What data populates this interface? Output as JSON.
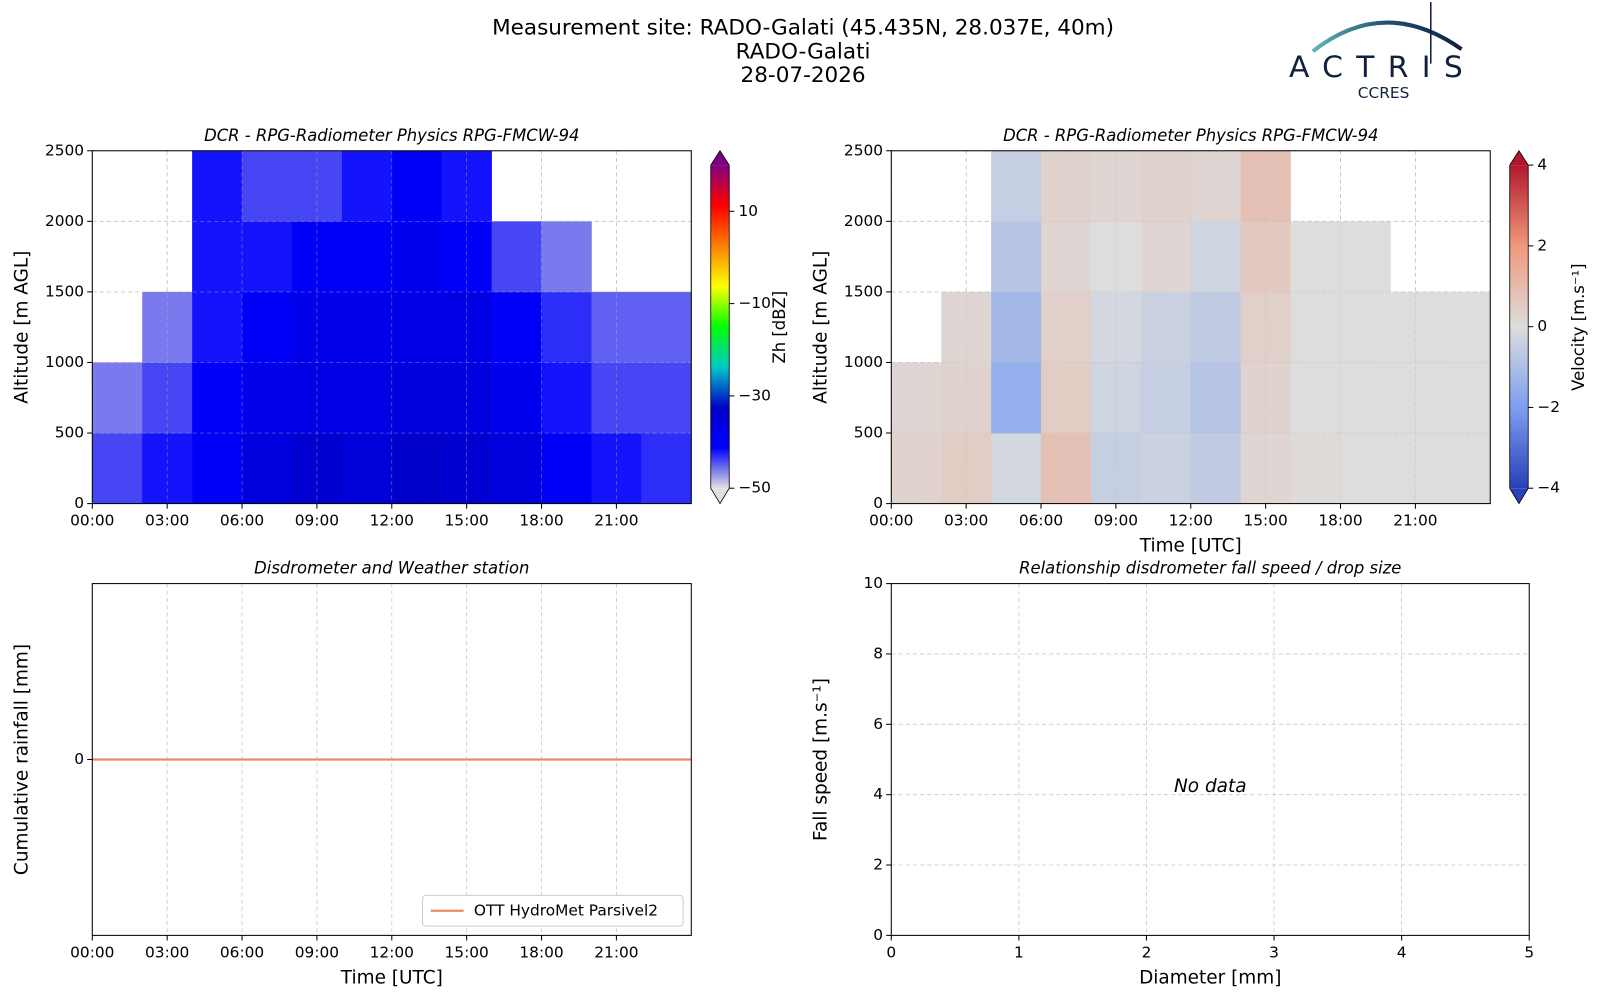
{
  "header": {
    "title": "Measurement site: RADO-Galati (45.435N, 28.037E, 40m)",
    "station": "RADO-Galati",
    "date": "28-07-2026"
  },
  "logo": {
    "name": "ACTRIS",
    "subtitle": "CCRES"
  },
  "chart_data": [
    {
      "type": "heatmap",
      "title": "DCR - RPG-Radiometer Physics RPG-FMCW-94",
      "ylabel": "Altitude [m AGL]",
      "x": [
        0,
        2,
        4,
        6,
        8,
        10,
        12,
        14,
        16,
        18,
        20,
        22,
        24
      ],
      "y": [
        0,
        500,
        1000,
        1500,
        2000,
        2500
      ],
      "z": [
        [
          -44,
          -42,
          -40,
          -36,
          -34,
          -35,
          -33,
          -34,
          -36,
          -40,
          -42,
          -43
        ],
        [
          -46,
          -44,
          -40,
          -38,
          -37,
          -37,
          -36,
          -36,
          -39,
          -42,
          -44,
          -44
        ],
        [
          null,
          -46,
          -42,
          -40,
          -38,
          -38,
          -37,
          -37,
          -40,
          -43,
          -45,
          -45
        ],
        [
          null,
          null,
          -42,
          -42,
          -40,
          -40,
          -39,
          -40,
          -44,
          -46,
          null,
          null
        ],
        [
          null,
          null,
          -42,
          -44,
          -44,
          -42,
          -40,
          -42,
          null,
          null,
          null,
          null
        ]
      ],
      "xlim": [
        0,
        24
      ],
      "ylim": [
        0,
        2500
      ],
      "xticks": [
        {
          "value": 0,
          "label": "00:00"
        },
        {
          "value": 3,
          "label": "03:00"
        },
        {
          "value": 6,
          "label": "06:00"
        },
        {
          "value": 9,
          "label": "09:00"
        },
        {
          "value": 12,
          "label": "12:00"
        },
        {
          "value": 15,
          "label": "15:00"
        },
        {
          "value": 18,
          "label": "18:00"
        },
        {
          "value": 21,
          "label": "21:00"
        }
      ],
      "yticks": [
        0,
        500,
        1000,
        1500,
        2000,
        2500
      ],
      "grid": true,
      "colorbar": {
        "label": "Zh [dBZ]",
        "lim": [
          -50,
          20
        ],
        "ticks": [
          {
            "value": -50,
            "label": "−50"
          },
          {
            "value": -30,
            "label": "−30"
          },
          {
            "value": -10,
            "label": "−10"
          },
          10
        ],
        "colors": [
          "#e0e0e0",
          "#0000ff",
          "#0000c8",
          "#00c8c8",
          "#00ff00",
          "#ffff00",
          "#ff8000",
          "#ff0000",
          "#800080"
        ]
      }
    },
    {
      "type": "heatmap",
      "title": "DCR - RPG-Radiometer Physics RPG-FMCW-94",
      "xlabel": "Time [UTC]",
      "ylabel": "Altitude [m AGL]",
      "x": [
        0,
        2,
        4,
        6,
        8,
        10,
        12,
        14,
        16,
        18,
        20,
        22,
        24
      ],
      "y": [
        0,
        500,
        1000,
        1500,
        2000,
        2500
      ],
      "z": [
        [
          0.3,
          0.5,
          -0.2,
          0.8,
          -0.5,
          -0.4,
          -0.6,
          0.2,
          0.1,
          0,
          0,
          0
        ],
        [
          0.2,
          0.3,
          -1.5,
          0.5,
          -0.3,
          -0.5,
          -0.8,
          0.3,
          0,
          0,
          0,
          0
        ],
        [
          null,
          0.2,
          -1.2,
          0.4,
          -0.2,
          -0.4,
          -0.6,
          0.4,
          0,
          0,
          0,
          0
        ],
        [
          null,
          null,
          -0.8,
          0.2,
          0,
          0.2,
          -0.3,
          0.6,
          0,
          0,
          null,
          null
        ],
        [
          null,
          null,
          -0.5,
          0.3,
          0.2,
          0.3,
          0.2,
          0.8,
          null,
          null,
          null,
          null
        ]
      ],
      "xlim": [
        0,
        24
      ],
      "ylim": [
        0,
        2500
      ],
      "xticks": [
        {
          "value": 0,
          "label": "00:00"
        },
        {
          "value": 3,
          "label": "03:00"
        },
        {
          "value": 6,
          "label": "06:00"
        },
        {
          "value": 9,
          "label": "09:00"
        },
        {
          "value": 12,
          "label": "12:00"
        },
        {
          "value": 15,
          "label": "15:00"
        },
        {
          "value": 18,
          "label": "18:00"
        },
        {
          "value": 21,
          "label": "21:00"
        }
      ],
      "yticks": [
        0,
        500,
        1000,
        1500,
        2000,
        2500
      ],
      "grid": true,
      "colorbar": {
        "label": "Velocity [m.s⁻¹]",
        "lim": [
          -4,
          4
        ],
        "ticks": [
          {
            "value": -4,
            "label": "−4"
          },
          {
            "value": -2,
            "label": "−2"
          },
          0,
          2,
          4
        ],
        "colors": [
          "#2a3fb8",
          "#7c9ff0",
          "#dddddd",
          "#f0987a",
          "#b2182b"
        ]
      }
    },
    {
      "type": "line",
      "title": "Disdrometer and Weather station",
      "xlabel": "Time [UTC]",
      "ylabel": "Cumulative rainfall [mm]",
      "x": [
        0,
        24
      ],
      "series": [
        {
          "name": "OTT HydroMet Parsivel2",
          "color": "#ee8a5e",
          "values": [
            0,
            0
          ]
        }
      ],
      "xlim": [
        0,
        24
      ],
      "ylim": [
        -0.055,
        0.055
      ],
      "xticks": [
        {
          "value": 0,
          "label": "00:00"
        },
        {
          "value": 3,
          "label": "03:00"
        },
        {
          "value": 6,
          "label": "06:00"
        },
        {
          "value": 9,
          "label": "09:00"
        },
        {
          "value": 12,
          "label": "12:00"
        },
        {
          "value": 15,
          "label": "15:00"
        },
        {
          "value": 18,
          "label": "18:00"
        },
        {
          "value": 21,
          "label": "21:00"
        }
      ],
      "yticks": [
        0
      ],
      "grid": true,
      "legend": "lower right"
    },
    {
      "type": "scatter",
      "title": "Relationship disdrometer fall speed / drop size",
      "xlabel": "Diameter [mm]",
      "ylabel": "Fall speed [m.s⁻¹]",
      "annotation": "No data",
      "xlim": [
        0,
        5
      ],
      "ylim": [
        0,
        10
      ],
      "xticks": [
        0,
        1,
        2,
        3,
        4,
        5
      ],
      "yticks": [
        0,
        2,
        4,
        6,
        8,
        10
      ],
      "grid": true
    }
  ]
}
